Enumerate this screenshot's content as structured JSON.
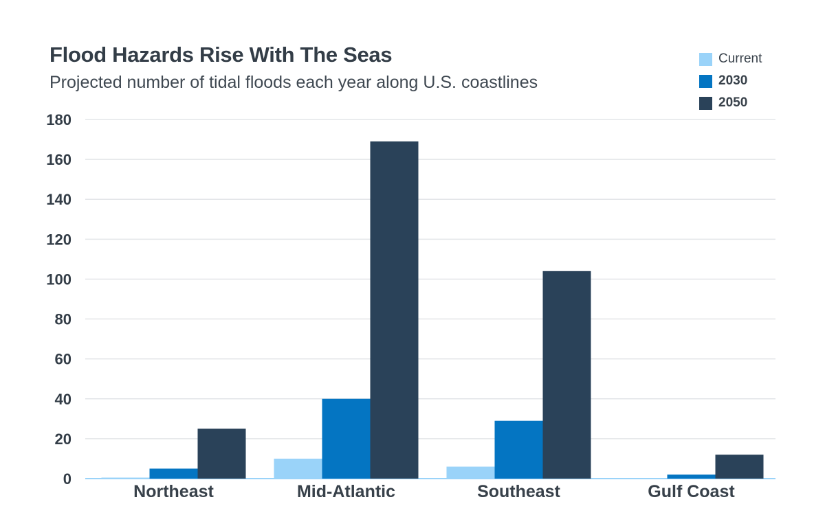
{
  "chart_data": {
    "type": "bar",
    "title": "Flood Hazards Rise With The Seas",
    "subtitle": "Projected number of tidal floods each year along U.S. coastlines",
    "xlabel": "",
    "ylabel": "",
    "ylim": [
      0,
      180
    ],
    "yticks": [
      0,
      20,
      40,
      60,
      80,
      100,
      120,
      140,
      160,
      180
    ],
    "grid": true,
    "legend_position": "top-right",
    "categories": [
      "Northeast",
      "Mid-Atlantic",
      "Southeast",
      "Gulf Coast"
    ],
    "series": [
      {
        "name": "Current",
        "color": "#9ad3f9",
        "values": [
          0.5,
          10,
          6,
          0.3
        ]
      },
      {
        "name": "2030",
        "color": "#0475c2",
        "values": [
          5,
          40,
          29,
          2
        ]
      },
      {
        "name": "2050",
        "color": "#2a4259",
        "values": [
          25,
          169,
          104,
          12
        ]
      }
    ]
  },
  "colors": {
    "text": "#333d47",
    "grid": "#e3e5e8"
  }
}
